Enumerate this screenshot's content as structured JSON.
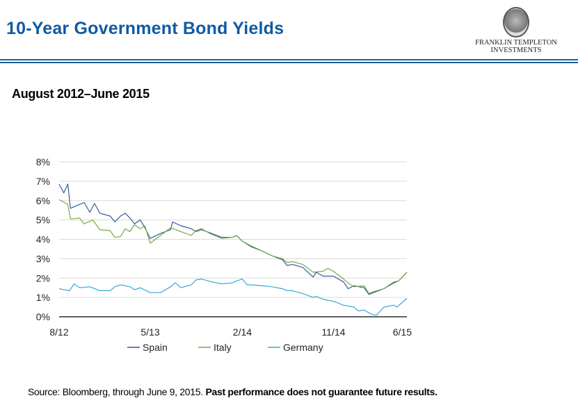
{
  "header": {
    "title": "10-Year Government Bond Yields",
    "logo_text_line1": "FRANKLIN TEMPLETON",
    "logo_text_line2": "INVESTMENTS"
  },
  "footer": {
    "source": "Source: Bloomberg, through June 9, 2015.",
    "disclaimer": "Past performance does not guarantee future results."
  },
  "chart_data": {
    "type": "line",
    "title": "August 2012–June 2015",
    "xlabel": "",
    "ylabel": "",
    "xlim": [
      "2012-08-01",
      "2015-06-09"
    ],
    "x_ticks": [
      {
        "date": "2012-08-01",
        "label": "8/12"
      },
      {
        "date": "2013-05-01",
        "label": "5/13"
      },
      {
        "date": "2014-02-01",
        "label": "2/14"
      },
      {
        "date": "2014-11-01",
        "label": "11/14"
      },
      {
        "date": "2015-06-09",
        "label": "6/15"
      }
    ],
    "ylim": [
      0,
      8
    ],
    "y_ticks": [
      "0%",
      "1%",
      "2%",
      "3%",
      "4%",
      "5%",
      "6%",
      "7%",
      "8%"
    ],
    "grid": "horizontal",
    "legend": "bottom",
    "series": [
      {
        "name": "Spain",
        "color": "#2f5c97",
        "points": [
          [
            "2012-08-01",
            6.85
          ],
          [
            "2012-08-15",
            6.4
          ],
          [
            "2012-08-27",
            6.85
          ],
          [
            "2012-09-04",
            5.6
          ],
          [
            "2012-10-01",
            5.8
          ],
          [
            "2012-10-15",
            5.9
          ],
          [
            "2012-11-01",
            5.4
          ],
          [
            "2012-11-15",
            5.85
          ],
          [
            "2012-12-01",
            5.35
          ],
          [
            "2013-01-01",
            5.2
          ],
          [
            "2013-01-15",
            4.9
          ],
          [
            "2013-02-01",
            5.2
          ],
          [
            "2013-02-15",
            5.35
          ],
          [
            "2013-03-01",
            5.1
          ],
          [
            "2013-03-15",
            4.8
          ],
          [
            "2013-04-01",
            5.0
          ],
          [
            "2013-04-15",
            4.6
          ],
          [
            "2013-05-01",
            4.05
          ],
          [
            "2013-06-01",
            4.3
          ],
          [
            "2013-07-01",
            4.5
          ],
          [
            "2013-07-07",
            4.9
          ],
          [
            "2013-08-01",
            4.7
          ],
          [
            "2013-09-01",
            4.55
          ],
          [
            "2013-09-15",
            4.4
          ],
          [
            "2013-10-01",
            4.5
          ],
          [
            "2013-11-01",
            4.3
          ],
          [
            "2013-12-01",
            4.1
          ],
          [
            "2014-01-01",
            4.1
          ],
          [
            "2014-01-15",
            4.2
          ],
          [
            "2014-02-01",
            3.9
          ],
          [
            "2014-03-01",
            3.6
          ],
          [
            "2014-04-01",
            3.4
          ],
          [
            "2014-05-01",
            3.15
          ],
          [
            "2014-06-01",
            2.95
          ],
          [
            "2014-06-15",
            2.65
          ],
          [
            "2014-07-01",
            2.7
          ],
          [
            "2014-08-01",
            2.55
          ],
          [
            "2014-09-01",
            2.05
          ],
          [
            "2014-09-10",
            2.3
          ],
          [
            "2014-10-01",
            2.1
          ],
          [
            "2014-11-01",
            2.1
          ],
          [
            "2014-12-01",
            1.8
          ],
          [
            "2014-12-15",
            1.45
          ],
          [
            "2015-01-01",
            1.6
          ],
          [
            "2015-02-01",
            1.5
          ],
          [
            "2015-02-15",
            1.15
          ],
          [
            "2015-03-01",
            1.25
          ],
          [
            "2015-04-01",
            1.45
          ],
          [
            "2015-05-01",
            1.75
          ],
          [
            "2015-05-15",
            1.85
          ],
          [
            "2015-06-09",
            2.3
          ]
        ]
      },
      {
        "name": "Italy",
        "color": "#77a847",
        "points": [
          [
            "2012-08-01",
            6.05
          ],
          [
            "2012-08-27",
            5.8
          ],
          [
            "2012-09-04",
            5.05
          ],
          [
            "2012-10-01",
            5.1
          ],
          [
            "2012-10-15",
            4.8
          ],
          [
            "2012-11-10",
            5.0
          ],
          [
            "2012-12-01",
            4.5
          ],
          [
            "2013-01-01",
            4.45
          ],
          [
            "2013-01-15",
            4.1
          ],
          [
            "2013-02-01",
            4.15
          ],
          [
            "2013-02-15",
            4.55
          ],
          [
            "2013-03-01",
            4.4
          ],
          [
            "2013-03-15",
            4.75
          ],
          [
            "2013-04-01",
            4.55
          ],
          [
            "2013-04-15",
            4.7
          ],
          [
            "2013-05-01",
            3.8
          ],
          [
            "2013-06-01",
            4.2
          ],
          [
            "2013-07-01",
            4.6
          ],
          [
            "2013-08-01",
            4.4
          ],
          [
            "2013-09-01",
            4.2
          ],
          [
            "2013-09-15",
            4.45
          ],
          [
            "2013-10-01",
            4.55
          ],
          [
            "2013-11-01",
            4.25
          ],
          [
            "2013-12-01",
            4.05
          ],
          [
            "2014-01-01",
            4.1
          ],
          [
            "2014-01-15",
            4.2
          ],
          [
            "2014-02-01",
            3.9
          ],
          [
            "2014-03-01",
            3.65
          ],
          [
            "2014-04-01",
            3.4
          ],
          [
            "2014-05-01",
            3.15
          ],
          [
            "2014-06-01",
            3.0
          ],
          [
            "2014-06-15",
            2.8
          ],
          [
            "2014-07-01",
            2.85
          ],
          [
            "2014-08-01",
            2.7
          ],
          [
            "2014-09-01",
            2.3
          ],
          [
            "2014-10-01",
            2.35
          ],
          [
            "2014-10-15",
            2.5
          ],
          [
            "2014-11-01",
            2.35
          ],
          [
            "2014-12-01",
            1.95
          ],
          [
            "2014-12-15",
            1.75
          ],
          [
            "2015-01-01",
            1.55
          ],
          [
            "2015-02-01",
            1.6
          ],
          [
            "2015-02-15",
            1.2
          ],
          [
            "2015-03-01",
            1.3
          ],
          [
            "2015-04-01",
            1.45
          ],
          [
            "2015-05-01",
            1.8
          ],
          [
            "2015-05-15",
            1.85
          ],
          [
            "2015-06-09",
            2.3
          ]
        ]
      },
      {
        "name": "Germany",
        "color": "#3aa7da",
        "points": [
          [
            "2012-08-01",
            1.45
          ],
          [
            "2012-08-15",
            1.4
          ],
          [
            "2012-09-01",
            1.35
          ],
          [
            "2012-09-15",
            1.7
          ],
          [
            "2012-10-01",
            1.5
          ],
          [
            "2012-11-01",
            1.55
          ],
          [
            "2012-12-01",
            1.35
          ],
          [
            "2013-01-01",
            1.35
          ],
          [
            "2013-01-15",
            1.55
          ],
          [
            "2013-02-01",
            1.65
          ],
          [
            "2013-03-01",
            1.55
          ],
          [
            "2013-03-15",
            1.4
          ],
          [
            "2013-04-01",
            1.5
          ],
          [
            "2013-05-01",
            1.25
          ],
          [
            "2013-06-01",
            1.25
          ],
          [
            "2013-07-01",
            1.55
          ],
          [
            "2013-07-15",
            1.75
          ],
          [
            "2013-08-01",
            1.5
          ],
          [
            "2013-09-01",
            1.65
          ],
          [
            "2013-09-15",
            1.9
          ],
          [
            "2013-10-01",
            1.95
          ],
          [
            "2013-11-01",
            1.8
          ],
          [
            "2013-12-01",
            1.7
          ],
          [
            "2014-01-01",
            1.75
          ],
          [
            "2014-01-15",
            1.85
          ],
          [
            "2014-02-01",
            1.95
          ],
          [
            "2014-02-15",
            1.65
          ],
          [
            "2014-03-01",
            1.65
          ],
          [
            "2014-04-01",
            1.6
          ],
          [
            "2014-05-01",
            1.55
          ],
          [
            "2014-06-01",
            1.45
          ],
          [
            "2014-06-15",
            1.35
          ],
          [
            "2014-07-01",
            1.35
          ],
          [
            "2014-08-01",
            1.2
          ],
          [
            "2014-09-01",
            1.0
          ],
          [
            "2014-09-10",
            1.05
          ],
          [
            "2014-10-01",
            0.9
          ],
          [
            "2014-11-01",
            0.8
          ],
          [
            "2014-12-01",
            0.6
          ],
          [
            "2015-01-01",
            0.5
          ],
          [
            "2015-01-15",
            0.3
          ],
          [
            "2015-02-01",
            0.35
          ],
          [
            "2015-02-15",
            0.2
          ],
          [
            "2015-03-01",
            0.1
          ],
          [
            "2015-03-10",
            0.08
          ],
          [
            "2015-04-01",
            0.5
          ],
          [
            "2015-05-01",
            0.6
          ],
          [
            "2015-05-10",
            0.5
          ],
          [
            "2015-06-09",
            0.95
          ]
        ]
      }
    ]
  }
}
